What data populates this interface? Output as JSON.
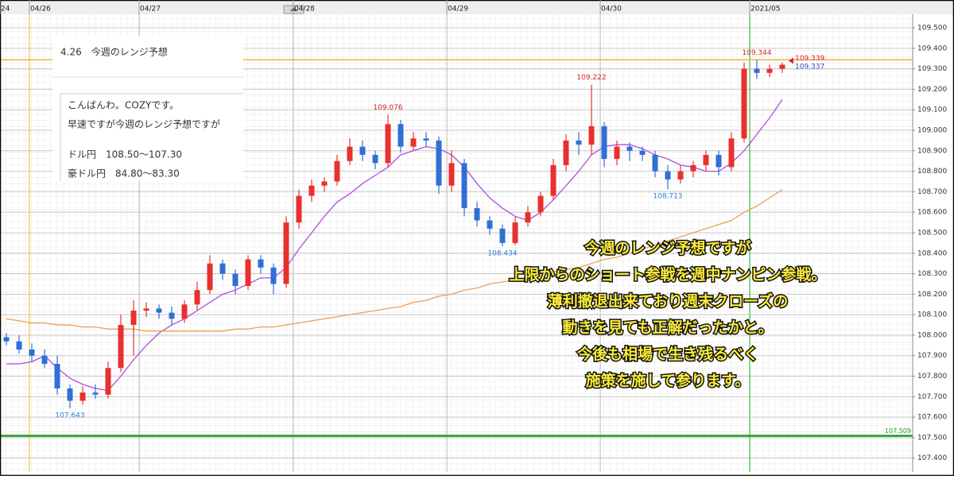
{
  "chart_data": {
    "type": "candlestick",
    "open": [
      107.99,
      107.97,
      107.93,
      107.9,
      107.86,
      107.74,
      107.68,
      107.72,
      107.71,
      107.84,
      108.05,
      108.12,
      108.13,
      108.11,
      108.08,
      108.15,
      108.22,
      108.35,
      108.3,
      108.24,
      108.37,
      108.33,
      108.25,
      108.55,
      108.68,
      108.73,
      108.75,
      108.85,
      108.92,
      108.88,
      108.84,
      109.03,
      108.92,
      108.96,
      108.95,
      108.73,
      108.84,
      108.62,
      108.56,
      108.52,
      108.45,
      108.55,
      108.6,
      108.68,
      108.83,
      108.95,
      108.93,
      109.02,
      108.86,
      108.92,
      108.9,
      108.88,
      108.8,
      108.76,
      108.8,
      108.83,
      108.88,
      108.82,
      108.96,
      109.3,
      109.28,
      109.3
    ],
    "high": [
      108.01,
      108.0,
      107.96,
      107.93,
      107.9,
      107.76,
      107.75,
      107.76,
      107.87,
      108.1,
      108.17,
      108.16,
      108.15,
      108.14,
      108.17,
      108.26,
      108.39,
      108.37,
      108.32,
      108.39,
      108.39,
      108.35,
      108.58,
      108.71,
      108.76,
      108.77,
      108.88,
      108.96,
      108.95,
      108.9,
      109.076,
      109.05,
      108.99,
      108.99,
      108.97,
      108.9,
      108.86,
      108.65,
      108.58,
      108.54,
      108.58,
      108.63,
      108.7,
      108.86,
      108.98,
      108.99,
      109.222,
      109.04,
      108.95,
      108.94,
      108.92,
      108.9,
      108.83,
      108.83,
      108.85,
      108.9,
      108.9,
      108.99,
      109.33,
      109.344,
      109.32,
      109.33
    ],
    "low": [
      107.95,
      107.91,
      107.87,
      107.84,
      107.71,
      107.643,
      107.66,
      107.69,
      107.69,
      107.82,
      107.9,
      108.09,
      108.08,
      108.05,
      108.06,
      108.12,
      108.2,
      108.27,
      108.2,
      108.22,
      108.3,
      108.2,
      108.23,
      108.52,
      108.65,
      108.7,
      108.73,
      108.83,
      108.85,
      108.81,
      108.82,
      108.89,
      108.9,
      108.92,
      108.69,
      108.7,
      108.58,
      108.53,
      108.49,
      108.434,
      108.44,
      108.53,
      108.58,
      108.66,
      108.8,
      108.88,
      108.88,
      108.82,
      108.83,
      108.85,
      108.85,
      108.77,
      108.713,
      108.74,
      108.77,
      108.8,
      108.78,
      108.8,
      108.94,
      109.25,
      109.26,
      109.28
    ],
    "close": [
      107.97,
      107.93,
      107.9,
      107.86,
      107.74,
      107.68,
      107.72,
      107.71,
      107.84,
      108.05,
      108.12,
      108.13,
      108.11,
      108.08,
      108.15,
      108.22,
      108.35,
      108.3,
      108.24,
      108.37,
      108.33,
      108.25,
      108.55,
      108.68,
      108.73,
      108.75,
      108.85,
      108.92,
      108.88,
      108.84,
      109.03,
      108.92,
      108.96,
      108.95,
      108.73,
      108.84,
      108.62,
      108.56,
      108.52,
      108.45,
      108.55,
      108.6,
      108.68,
      108.83,
      108.95,
      108.93,
      109.02,
      108.86,
      108.92,
      108.9,
      108.88,
      108.8,
      108.76,
      108.8,
      108.83,
      108.88,
      108.82,
      108.96,
      109.3,
      109.28,
      109.3,
      109.32
    ],
    "up_color": "#e8302e",
    "down_color": "#2f6fd6",
    "series": [
      {
        "color": "#b04fd8",
        "values": [
          107.86,
          107.86,
          107.87,
          107.9,
          107.84,
          107.79,
          107.76,
          107.74,
          107.73,
          107.8,
          107.88,
          107.95,
          108.01,
          108.05,
          108.08,
          108.12,
          108.16,
          108.2,
          108.22,
          108.25,
          108.28,
          108.28,
          108.33,
          108.42,
          108.5,
          108.58,
          108.65,
          108.69,
          108.74,
          108.78,
          108.82,
          108.88,
          108.9,
          108.92,
          108.91,
          108.88,
          108.82,
          108.74,
          108.67,
          108.62,
          108.58,
          108.56,
          108.6,
          108.66,
          108.73,
          108.8,
          108.88,
          108.92,
          108.93,
          108.93,
          108.91,
          108.88,
          108.86,
          108.83,
          108.82,
          108.8,
          108.8,
          108.84,
          108.9,
          108.98,
          109.06,
          109.15
        ]
      },
      {
        "color": "#f0a050",
        "values": [
          108.08,
          108.07,
          108.06,
          108.06,
          108.05,
          108.05,
          108.04,
          108.04,
          108.03,
          108.03,
          108.03,
          108.02,
          108.02,
          108.02,
          108.02,
          108.02,
          108.02,
          108.02,
          108.03,
          108.03,
          108.04,
          108.04,
          108.05,
          108.06,
          108.07,
          108.08,
          108.09,
          108.1,
          108.11,
          108.12,
          108.13,
          108.14,
          108.16,
          108.17,
          108.19,
          108.2,
          108.22,
          108.23,
          108.25,
          108.26,
          108.27,
          108.28,
          108.3,
          108.31,
          108.32,
          108.33,
          108.35,
          108.37,
          108.38,
          108.4,
          108.42,
          108.44,
          108.46,
          108.48,
          108.5,
          108.52,
          108.54,
          108.56,
          108.6,
          108.63,
          108.67,
          108.71
        ]
      }
    ],
    "marked_highs": [
      30,
      46,
      59
    ],
    "marked_lows": [
      5,
      39,
      52
    ],
    "bid": 109.339,
    "ask": 109.337,
    "levels": [
      {
        "value": 109.344,
        "color": "#f5b041"
      },
      {
        "value": 107.509,
        "color": "#1f9e1f"
      }
    ],
    "vlines": [
      {
        "x": 1.81,
        "color": "#e8d04a"
      },
      {
        "x": 58.44,
        "color": "#3cc43c"
      }
    ],
    "xlim": [
      -0.5,
      71.25
    ],
    "xticks": [
      {
        "value": -0.5,
        "label": "24"
      },
      {
        "value": 1.81,
        "label": "04/26"
      },
      {
        "value": 10.44,
        "label": "04/27"
      },
      {
        "value": 22.56,
        "label": "04/28"
      },
      {
        "value": 34.63,
        "label": "04/29"
      },
      {
        "value": 46.69,
        "label": "04/30"
      },
      {
        "value": 58.44,
        "label": "2021/05"
      }
    ],
    "ylim": [
      107.333,
      109.566
    ],
    "yticks": [
      {
        "value": 109.5,
        "label": "109.500"
      },
      {
        "value": 109.4,
        "label": "109.400"
      },
      {
        "value": 109.3,
        "label": "109.300"
      },
      {
        "value": 109.2,
        "label": "109.200"
      },
      {
        "value": 109.1,
        "label": "109.100"
      },
      {
        "value": 109.0,
        "label": "109.000"
      },
      {
        "value": 108.9,
        "label": "108.900"
      },
      {
        "value": 108.8,
        "label": "108.800"
      },
      {
        "value": 108.7,
        "label": "108.700"
      },
      {
        "value": 108.6,
        "label": "108.600"
      },
      {
        "value": 108.5,
        "label": "108.500"
      },
      {
        "value": 108.4,
        "label": "108.400"
      },
      {
        "value": 108.3,
        "label": "108.300"
      },
      {
        "value": 108.2,
        "label": "108.200"
      },
      {
        "value": 108.1,
        "label": "108.100"
      },
      {
        "value": 108.0,
        "label": "108.000"
      },
      {
        "value": 107.9,
        "label": "107.900"
      },
      {
        "value": 107.8,
        "label": "107.800"
      },
      {
        "value": 107.7,
        "label": "107.700"
      },
      {
        "value": 107.6,
        "label": "107.600"
      },
      {
        "value": 107.5,
        "label": "107.500"
      },
      {
        "value": 107.4,
        "label": "107.400"
      }
    ],
    "memo": {
      "title": "4.26　今週のレンジ予想",
      "paragraphs": [
        [
          "こんばんわ。COZYです。",
          "早速ですが今週のレンジ予想ですが"
        ],
        [
          "ドル円　108.50～107.30",
          "豪ドル円　84.80～83.30"
        ]
      ]
    },
    "comment": [
      "今週のレンジ予想ですが",
      "上限からのショート参戦を週中ナンピン参戦。",
      "薄利撤退出来ており週末クローズの",
      "動きを見ても正解だったかと。",
      "今後も相場で生き残るべく",
      "施策を施して参ります。"
    ]
  }
}
